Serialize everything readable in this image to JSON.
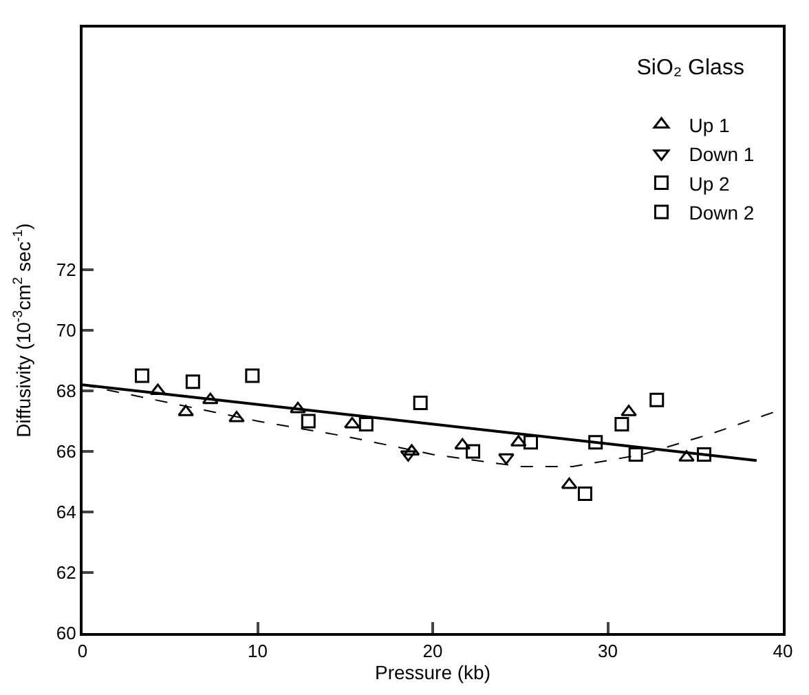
{
  "chart_data": {
    "type": "scatter",
    "legend_title": "SiO₂ Glass",
    "xlabel": "Pressure (kb)",
    "ylabel": "Diffusivity (10$^{-3}$cm$^{2}$ sec$^{-1}$)",
    "xlim": [
      0,
      40
    ],
    "xticks": [
      0,
      10,
      20,
      30,
      40
    ],
    "ylim": [
      60,
      80
    ],
    "yticks": [
      60,
      62,
      64,
      66,
      68,
      70,
      72
    ],
    "legend": "top right",
    "series": [
      {
        "name": "Up 1",
        "color": "#000000",
        "marker": "triangle",
        "x": [
          4.3,
          5.9,
          7.3,
          8.8,
          12.3,
          15.4,
          18.8,
          21.7,
          24.9,
          27.8,
          31.2,
          34.5
        ],
        "values": [
          68.0,
          67.3,
          67.7,
          67.1,
          67.4,
          66.9,
          66.0,
          66.2,
          66.3,
          64.9,
          67.3,
          65.8
        ]
      },
      {
        "name": "Down 1",
        "color": "#000000",
        "marker": "triangle-down",
        "x": [
          18.6,
          24.2
        ],
        "values": [
          65.9,
          65.8
        ]
      },
      {
        "name": "Up 2",
        "color": "#000000",
        "marker": "square",
        "x": [
          29.3,
          30.8,
          32.8,
          35.5
        ],
        "values": [
          66.3,
          66.9,
          67.7,
          65.9
        ]
      },
      {
        "name": "Down 2",
        "color": "#000000",
        "marker": "square",
        "x": [
          3.4,
          6.3,
          9.7,
          12.9,
          16.2,
          19.3,
          22.3,
          25.6,
          28.7,
          31.6
        ],
        "values": [
          68.5,
          68.3,
          68.5,
          67.0,
          66.9,
          67.6,
          66.0,
          66.3,
          64.6,
          65.9
        ]
      },
      {
        "type": "line",
        "color": "#000000",
        "line_style": "solid",
        "marker": "none",
        "x": [
          0,
          38.5
        ],
        "values": [
          68.2,
          65.7
        ]
      },
      {
        "type": "line",
        "color": "#000000",
        "line_style": "dashed",
        "marker": "none",
        "x": [
          0,
          5,
          10,
          15,
          20,
          25,
          28,
          32,
          36,
          40
        ],
        "values": [
          68.2,
          67.6,
          67.0,
          66.5,
          65.9,
          65.5,
          65.5,
          65.9,
          66.6,
          67.4
        ]
      }
    ]
  }
}
